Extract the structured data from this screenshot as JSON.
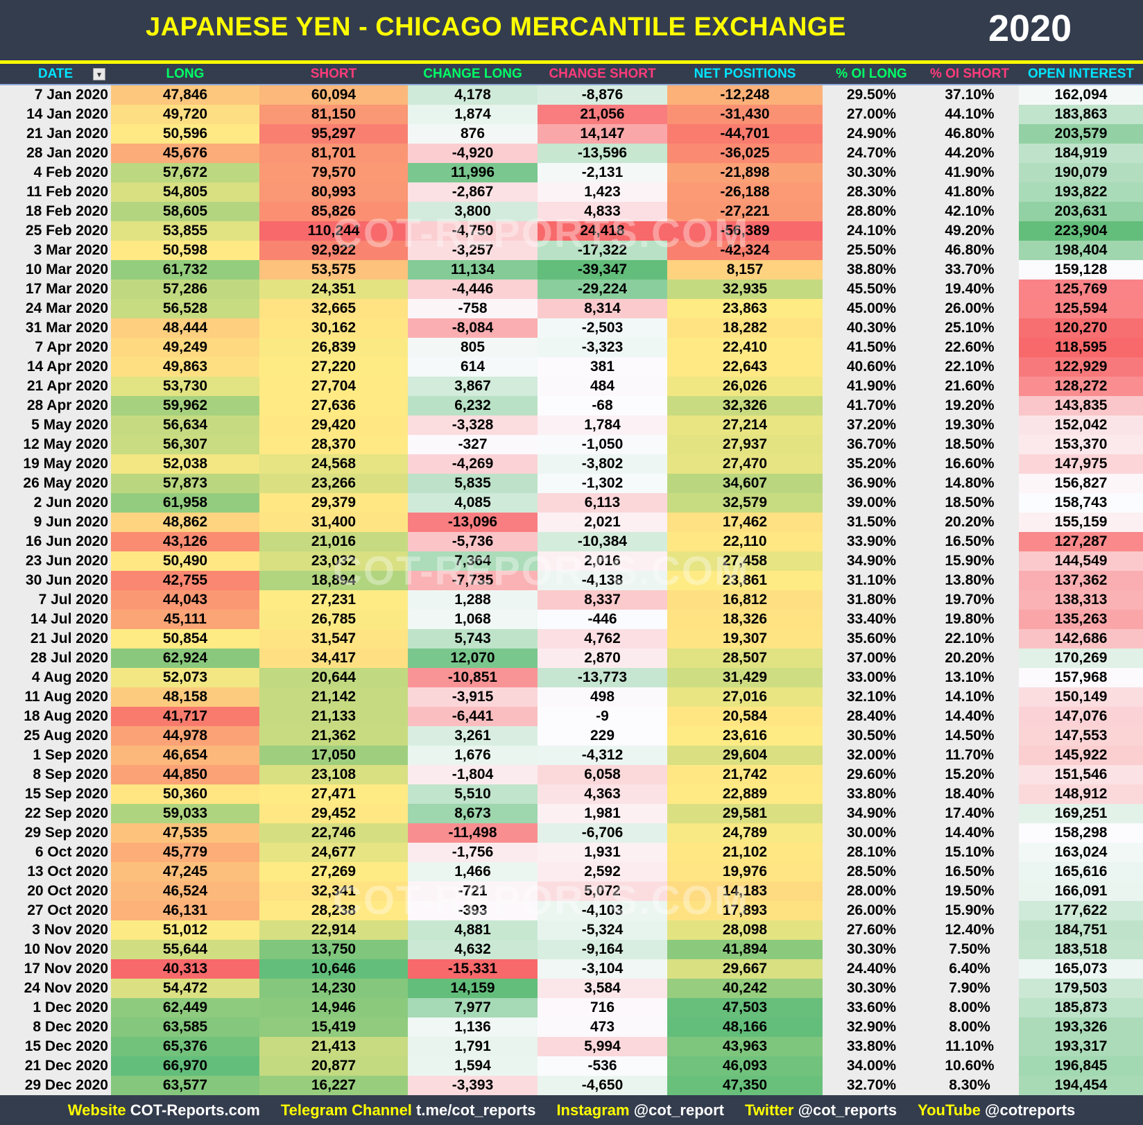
{
  "title": "JAPANESE YEN - CHICAGO MERCANTILE EXCHANGE",
  "year": "2020",
  "watermark": "COT-REPORTS.COM",
  "colors": {
    "background": "#343d4e",
    "title": "#ffff00",
    "scale_red": "#f8696b",
    "scale_yellow": "#ffeb84",
    "scale_green": "#63be7b",
    "scale_white": "#fcfcff",
    "plain_cell": "#ececec"
  },
  "columns": [
    {
      "label": "DATE",
      "color": "#00e5ff",
      "scale": "none"
    },
    {
      "label": "LONG",
      "color": "#00ff66",
      "scale": "ryg"
    },
    {
      "label": "SHORT",
      "color": "#ff3b7a",
      "scale": "gyr"
    },
    {
      "label": "CHANGE LONG",
      "color": "#00ff66",
      "scale": "rwg-zero"
    },
    {
      "label": "CHANGE SHORT",
      "color": "#ff3b7a",
      "scale": "gwr-zero"
    },
    {
      "label": "NET POSITIONS",
      "color": "#00e5ff",
      "scale": "ryg"
    },
    {
      "label": "% OI LONG",
      "color": "#00ff66",
      "scale": "none"
    },
    {
      "label": "% OI SHORT",
      "color": "#ff3b7a",
      "scale": "none"
    },
    {
      "label": "OPEN INTEREST",
      "color": "#00e5ff",
      "scale": "rwg"
    }
  ],
  "filter_icon": "sort-filter-icon",
  "rows": [
    [
      "7 Jan 2020",
      "47,846",
      "60,094",
      "4,178",
      "-8,876",
      "-12,248",
      "29.50%",
      "37.10%",
      "162,094"
    ],
    [
      "14 Jan 2020",
      "49,720",
      "81,150",
      "1,874",
      "21,056",
      "-31,430",
      "27.00%",
      "44.10%",
      "183,863"
    ],
    [
      "21 Jan 2020",
      "50,596",
      "95,297",
      "876",
      "14,147",
      "-44,701",
      "24.90%",
      "46.80%",
      "203,579"
    ],
    [
      "28 Jan 2020",
      "45,676",
      "81,701",
      "-4,920",
      "-13,596",
      "-36,025",
      "24.70%",
      "44.20%",
      "184,919"
    ],
    [
      "4 Feb 2020",
      "57,672",
      "79,570",
      "11,996",
      "-2,131",
      "-21,898",
      "30.30%",
      "41.90%",
      "190,079"
    ],
    [
      "11 Feb 2020",
      "54,805",
      "80,993",
      "-2,867",
      "1,423",
      "-26,188",
      "28.30%",
      "41.80%",
      "193,822"
    ],
    [
      "18 Feb 2020",
      "58,605",
      "85,826",
      "3,800",
      "4,833",
      "-27,221",
      "28.80%",
      "42.10%",
      "203,631"
    ],
    [
      "25 Feb 2020",
      "53,855",
      "110,244",
      "-4,750",
      "24,418",
      "-56,389",
      "24.10%",
      "49.20%",
      "223,904"
    ],
    [
      "3 Mar 2020",
      "50,598",
      "92,922",
      "-3,257",
      "-17,322",
      "-42,324",
      "25.50%",
      "46.80%",
      "198,404"
    ],
    [
      "10 Mar 2020",
      "61,732",
      "53,575",
      "11,134",
      "-39,347",
      "8,157",
      "38.80%",
      "33.70%",
      "159,128"
    ],
    [
      "17 Mar 2020",
      "57,286",
      "24,351",
      "-4,446",
      "-29,224",
      "32,935",
      "45.50%",
      "19.40%",
      "125,769"
    ],
    [
      "24 Mar 2020",
      "56,528",
      "32,665",
      "-758",
      "8,314",
      "23,863",
      "45.00%",
      "26.00%",
      "125,594"
    ],
    [
      "31 Mar 2020",
      "48,444",
      "30,162",
      "-8,084",
      "-2,503",
      "18,282",
      "40.30%",
      "25.10%",
      "120,270"
    ],
    [
      "7 Apr 2020",
      "49,249",
      "26,839",
      "805",
      "-3,323",
      "22,410",
      "41.50%",
      "22.60%",
      "118,595"
    ],
    [
      "14 Apr 2020",
      "49,863",
      "27,220",
      "614",
      "381",
      "22,643",
      "40.60%",
      "22.10%",
      "122,929"
    ],
    [
      "21 Apr 2020",
      "53,730",
      "27,704",
      "3,867",
      "484",
      "26,026",
      "41.90%",
      "21.60%",
      "128,272"
    ],
    [
      "28 Apr 2020",
      "59,962",
      "27,636",
      "6,232",
      "-68",
      "32,326",
      "41.70%",
      "19.20%",
      "143,835"
    ],
    [
      "5 May 2020",
      "56,634",
      "29,420",
      "-3,328",
      "1,784",
      "27,214",
      "37.20%",
      "19.30%",
      "152,042"
    ],
    [
      "12 May 2020",
      "56,307",
      "28,370",
      "-327",
      "-1,050",
      "27,937",
      "36.70%",
      "18.50%",
      "153,370"
    ],
    [
      "19 May 2020",
      "52,038",
      "24,568",
      "-4,269",
      "-3,802",
      "27,470",
      "35.20%",
      "16.60%",
      "147,975"
    ],
    [
      "26 May 2020",
      "57,873",
      "23,266",
      "5,835",
      "-1,302",
      "34,607",
      "36.90%",
      "14.80%",
      "156,827"
    ],
    [
      "2 Jun 2020",
      "61,958",
      "29,379",
      "4,085",
      "6,113",
      "32,579",
      "39.00%",
      "18.50%",
      "158,743"
    ],
    [
      "9 Jun 2020",
      "48,862",
      "31,400",
      "-13,096",
      "2,021",
      "17,462",
      "31.50%",
      "20.20%",
      "155,159"
    ],
    [
      "16 Jun 2020",
      "43,126",
      "21,016",
      "-5,736",
      "-10,384",
      "22,110",
      "33.90%",
      "16.50%",
      "127,287"
    ],
    [
      "23 Jun 2020",
      "50,490",
      "23,032",
      "7,364",
      "2,016",
      "27,458",
      "34.90%",
      "15.90%",
      "144,549"
    ],
    [
      "30 Jun 2020",
      "42,755",
      "18,894",
      "-7,735",
      "-4,138",
      "23,861",
      "31.10%",
      "13.80%",
      "137,362"
    ],
    [
      "7 Jul 2020",
      "44,043",
      "27,231",
      "1,288",
      "8,337",
      "16,812",
      "31.80%",
      "19.70%",
      "138,313"
    ],
    [
      "14 Jul 2020",
      "45,111",
      "26,785",
      "1,068",
      "-446",
      "18,326",
      "33.40%",
      "19.80%",
      "135,263"
    ],
    [
      "21 Jul 2020",
      "50,854",
      "31,547",
      "5,743",
      "4,762",
      "19,307",
      "35.60%",
      "22.10%",
      "142,686"
    ],
    [
      "28 Jul 2020",
      "62,924",
      "34,417",
      "12,070",
      "2,870",
      "28,507",
      "37.00%",
      "20.20%",
      "170,269"
    ],
    [
      "4 Aug 2020",
      "52,073",
      "20,644",
      "-10,851",
      "-13,773",
      "31,429",
      "33.00%",
      "13.10%",
      "157,968"
    ],
    [
      "11 Aug 2020",
      "48,158",
      "21,142",
      "-3,915",
      "498",
      "27,016",
      "32.10%",
      "14.10%",
      "150,149"
    ],
    [
      "18 Aug 2020",
      "41,717",
      "21,133",
      "-6,441",
      "-9",
      "20,584",
      "28.40%",
      "14.40%",
      "147,076"
    ],
    [
      "25 Aug 2020",
      "44,978",
      "21,362",
      "3,261",
      "229",
      "23,616",
      "30.50%",
      "14.50%",
      "147,553"
    ],
    [
      "1 Sep 2020",
      "46,654",
      "17,050",
      "1,676",
      "-4,312",
      "29,604",
      "32.00%",
      "11.70%",
      "145,922"
    ],
    [
      "8 Sep 2020",
      "44,850",
      "23,108",
      "-1,804",
      "6,058",
      "21,742",
      "29.60%",
      "15.20%",
      "151,546"
    ],
    [
      "15 Sep 2020",
      "50,360",
      "27,471",
      "5,510",
      "4,363",
      "22,889",
      "33.80%",
      "18.40%",
      "148,912"
    ],
    [
      "22 Sep 2020",
      "59,033",
      "29,452",
      "8,673",
      "1,981",
      "29,581",
      "34.90%",
      "17.40%",
      "169,251"
    ],
    [
      "29 Sep 2020",
      "47,535",
      "22,746",
      "-11,498",
      "-6,706",
      "24,789",
      "30.00%",
      "14.40%",
      "158,298"
    ],
    [
      "6 Oct 2020",
      "45,779",
      "24,677",
      "-1,756",
      "1,931",
      "21,102",
      "28.10%",
      "15.10%",
      "163,024"
    ],
    [
      "13 Oct 2020",
      "47,245",
      "27,269",
      "1,466",
      "2,592",
      "19,976",
      "28.50%",
      "16.50%",
      "165,616"
    ],
    [
      "20 Oct 2020",
      "46,524",
      "32,341",
      "-721",
      "5,072",
      "14,183",
      "28.00%",
      "19.50%",
      "166,091"
    ],
    [
      "27 Oct 2020",
      "46,131",
      "28,238",
      "-393",
      "-4,103",
      "17,893",
      "26.00%",
      "15.90%",
      "177,622"
    ],
    [
      "3 Nov 2020",
      "51,012",
      "22,914",
      "4,881",
      "-5,324",
      "28,098",
      "27.60%",
      "12.40%",
      "184,751"
    ],
    [
      "10 Nov 2020",
      "55,644",
      "13,750",
      "4,632",
      "-9,164",
      "41,894",
      "30.30%",
      "7.50%",
      "183,518"
    ],
    [
      "17 Nov 2020",
      "40,313",
      "10,646",
      "-15,331",
      "-3,104",
      "29,667",
      "24.40%",
      "6.40%",
      "165,073"
    ],
    [
      "24 Nov 2020",
      "54,472",
      "14,230",
      "14,159",
      "3,584",
      "40,242",
      "30.30%",
      "7.90%",
      "179,503"
    ],
    [
      "1 Dec 2020",
      "62,449",
      "14,946",
      "7,977",
      "716",
      "47,503",
      "33.60%",
      "8.00%",
      "185,873"
    ],
    [
      "8 Dec 2020",
      "63,585",
      "15,419",
      "1,136",
      "473",
      "48,166",
      "32.90%",
      "8.00%",
      "193,326"
    ],
    [
      "15 Dec 2020",
      "65,376",
      "21,413",
      "1,791",
      "5,994",
      "43,963",
      "33.80%",
      "11.10%",
      "193,317"
    ],
    [
      "21 Dec 2020",
      "66,970",
      "20,877",
      "1,594",
      "-536",
      "46,093",
      "34.00%",
      "10.60%",
      "196,845"
    ],
    [
      "29 Dec 2020",
      "63,577",
      "16,227",
      "-3,393",
      "-4,650",
      "47,350",
      "32.70%",
      "8.30%",
      "194,454"
    ]
  ],
  "footer": [
    {
      "label": "Website",
      "value": "COT-Reports.com"
    },
    {
      "label": "Telegram Channel",
      "value": "t.me/cot_reports"
    },
    {
      "label": "Instagram",
      "value": "@cot_report"
    },
    {
      "label": "Twitter",
      "value": "@cot_reports"
    },
    {
      "label": "YouTube",
      "value": "@cotreports"
    }
  ]
}
